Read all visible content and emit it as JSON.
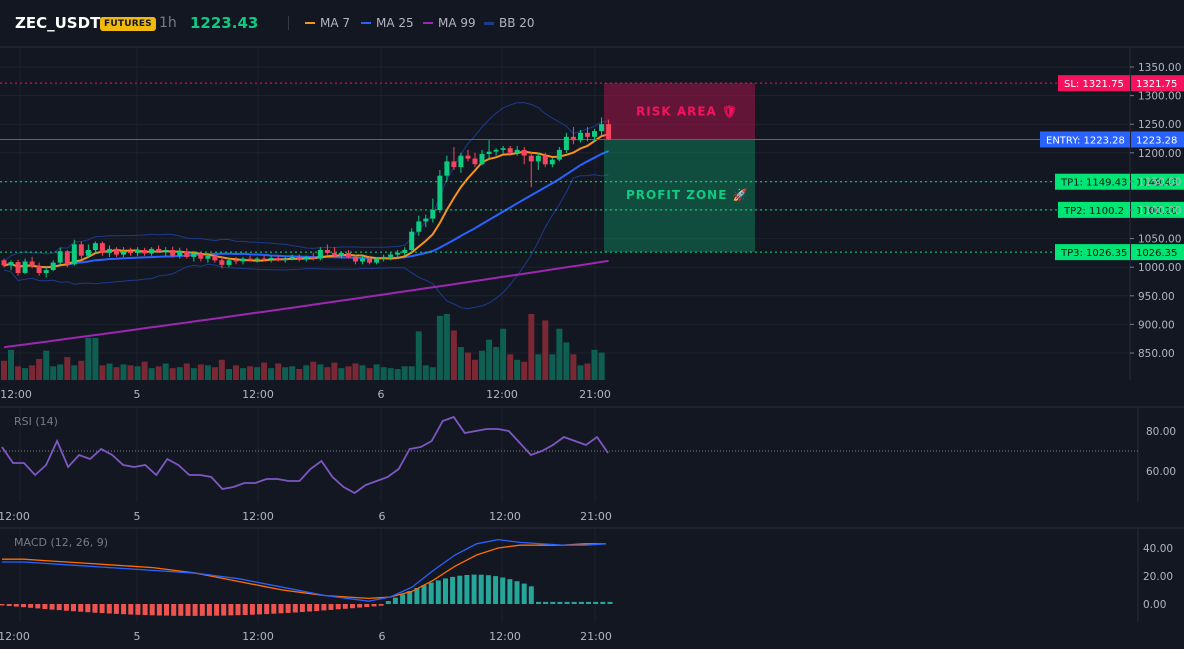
{
  "header": {
    "symbol": "ZEC_USDT",
    "badge": "FUTURES",
    "timeframe": "1h",
    "last_price": "1223.43",
    "indicators": [
      {
        "label": "MA 7",
        "color": "#f7931a"
      },
      {
        "label": "MA 25",
        "color": "#2962ff"
      },
      {
        "label": "MA 99",
        "color": "#9c27b0"
      },
      {
        "label": "BB 20",
        "color": "#1e3a8a"
      }
    ]
  },
  "price_axis": {
    "ticks": [
      "1350.00",
      "1300.00",
      "1250.00",
      "1200.00",
      "1150.00",
      "1100.00",
      "1050.00",
      "1000.00",
      "950.00",
      "900.00",
      "850.00"
    ]
  },
  "time_axis": {
    "labels": [
      "12:00",
      "5",
      "12:00",
      "6",
      "12:00",
      "21:00"
    ]
  },
  "levels": {
    "sl": {
      "tag": "SL: 1321.75",
      "price": "1321.75",
      "value": 1321.75,
      "color": "#f6125d"
    },
    "entry": {
      "tag": "ENTRY: 1223.28",
      "price": "1223.28",
      "value": 1223.28,
      "color": "#2962ff"
    },
    "tp1": {
      "tag": "TP1: 1149.43",
      "price": "1149.43",
      "value": 1149.43,
      "color": "#00e676"
    },
    "tp2": {
      "tag": "TP2: 1100.2",
      "price": "1100.20",
      "value": 1100.2,
      "color": "#00e676"
    },
    "tp3": {
      "tag": "TP3: 1026.35",
      "price": "1026.35",
      "value": 1026.35,
      "color": "#00e676"
    }
  },
  "zones": {
    "risk_label": "RISK AREA 🛡",
    "profit_label": "PROFIT ZONE 🚀"
  },
  "rsi": {
    "title": "RSI (14)",
    "ticks": [
      "80.00",
      "60.00"
    ]
  },
  "macd": {
    "title": "MACD (12, 26, 9)",
    "ticks": [
      "40.00",
      "20.00",
      "0.00"
    ]
  },
  "colors": {
    "up": "#0ecb81",
    "down": "#f6465d",
    "rsi_line": "#7e57c2",
    "macd_line": "#2962ff",
    "signal_line": "#ff6d00"
  },
  "chart_data": {
    "type": "candlestick",
    "interval": "1h",
    "ylim": [
      830,
      1365
    ],
    "candles": [
      {
        "o": 1012,
        "h": 1015,
        "l": 1000,
        "c": 1003
      },
      {
        "o": 1003,
        "h": 1012,
        "l": 995,
        "c": 1009
      },
      {
        "o": 1009,
        "h": 1013,
        "l": 985,
        "c": 990
      },
      {
        "o": 990,
        "h": 1015,
        "l": 988,
        "c": 1010
      },
      {
        "o": 1010,
        "h": 1018,
        "l": 998,
        "c": 1002
      },
      {
        "o": 1002,
        "h": 1008,
        "l": 985,
        "c": 990
      },
      {
        "o": 990,
        "h": 1000,
        "l": 982,
        "c": 995
      },
      {
        "o": 995,
        "h": 1012,
        "l": 993,
        "c": 1008
      },
      {
        "o": 1008,
        "h": 1034,
        "l": 1005,
        "c": 1028
      },
      {
        "o": 1028,
        "h": 1030,
        "l": 1000,
        "c": 1005
      },
      {
        "o": 1005,
        "h": 1048,
        "l": 1003,
        "c": 1040
      },
      {
        "o": 1040,
        "h": 1045,
        "l": 1015,
        "c": 1020
      },
      {
        "o": 1020,
        "h": 1040,
        "l": 1018,
        "c": 1030
      },
      {
        "o": 1030,
        "h": 1045,
        "l": 1025,
        "c": 1042
      },
      {
        "o": 1042,
        "h": 1045,
        "l": 1020,
        "c": 1025
      },
      {
        "o": 1025,
        "h": 1038,
        "l": 1018,
        "c": 1032
      },
      {
        "o": 1032,
        "h": 1035,
        "l": 1018,
        "c": 1022
      },
      {
        "o": 1022,
        "h": 1035,
        "l": 1018,
        "c": 1028
      },
      {
        "o": 1028,
        "h": 1034,
        "l": 1020,
        "c": 1025
      },
      {
        "o": 1025,
        "h": 1035,
        "l": 1020,
        "c": 1030
      },
      {
        "o": 1030,
        "h": 1034,
        "l": 1020,
        "c": 1024
      },
      {
        "o": 1024,
        "h": 1035,
        "l": 1020,
        "c": 1032
      },
      {
        "o": 1032,
        "h": 1038,
        "l": 1025,
        "c": 1028
      },
      {
        "o": 1028,
        "h": 1035,
        "l": 1020,
        "c": 1030
      },
      {
        "o": 1030,
        "h": 1036,
        "l": 1018,
        "c": 1020
      },
      {
        "o": 1020,
        "h": 1034,
        "l": 1015,
        "c": 1028
      },
      {
        "o": 1028,
        "h": 1033,
        "l": 1015,
        "c": 1018
      },
      {
        "o": 1018,
        "h": 1028,
        "l": 1010,
        "c": 1024
      },
      {
        "o": 1024,
        "h": 1026,
        "l": 1010,
        "c": 1015
      },
      {
        "o": 1015,
        "h": 1025,
        "l": 1008,
        "c": 1020
      },
      {
        "o": 1020,
        "h": 1022,
        "l": 1008,
        "c": 1012
      },
      {
        "o": 1012,
        "h": 1018,
        "l": 998,
        "c": 1004
      },
      {
        "o": 1004,
        "h": 1015,
        "l": 1000,
        "c": 1012
      },
      {
        "o": 1012,
        "h": 1018,
        "l": 1005,
        "c": 1010
      },
      {
        "o": 1010,
        "h": 1018,
        "l": 1005,
        "c": 1015
      },
      {
        "o": 1015,
        "h": 1020,
        "l": 1010,
        "c": 1012
      },
      {
        "o": 1012,
        "h": 1018,
        "l": 1008,
        "c": 1015
      },
      {
        "o": 1015,
        "h": 1020,
        "l": 1010,
        "c": 1014
      },
      {
        "o": 1014,
        "h": 1020,
        "l": 1008,
        "c": 1016
      },
      {
        "o": 1016,
        "h": 1020,
        "l": 1010,
        "c": 1012
      },
      {
        "o": 1012,
        "h": 1018,
        "l": 1008,
        "c": 1015
      },
      {
        "o": 1015,
        "h": 1022,
        "l": 1012,
        "c": 1018
      },
      {
        "o": 1018,
        "h": 1022,
        "l": 1010,
        "c": 1014
      },
      {
        "o": 1014,
        "h": 1020,
        "l": 1010,
        "c": 1018
      },
      {
        "o": 1018,
        "h": 1025,
        "l": 1012,
        "c": 1015
      },
      {
        "o": 1015,
        "h": 1035,
        "l": 1012,
        "c": 1030
      },
      {
        "o": 1030,
        "h": 1040,
        "l": 1022,
        "c": 1025
      },
      {
        "o": 1025,
        "h": 1035,
        "l": 1018,
        "c": 1020
      },
      {
        "o": 1020,
        "h": 1028,
        "l": 1015,
        "c": 1025
      },
      {
        "o": 1025,
        "h": 1030,
        "l": 1015,
        "c": 1018
      },
      {
        "o": 1018,
        "h": 1022,
        "l": 1005,
        "c": 1010
      },
      {
        "o": 1010,
        "h": 1020,
        "l": 1005,
        "c": 1015
      },
      {
        "o": 1015,
        "h": 1020,
        "l": 1005,
        "c": 1008
      },
      {
        "o": 1008,
        "h": 1018,
        "l": 1005,
        "c": 1015
      },
      {
        "o": 1015,
        "h": 1022,
        "l": 1010,
        "c": 1018
      },
      {
        "o": 1018,
        "h": 1025,
        "l": 1012,
        "c": 1022
      },
      {
        "o": 1022,
        "h": 1030,
        "l": 1015,
        "c": 1025
      },
      {
        "o": 1025,
        "h": 1035,
        "l": 1020,
        "c": 1030
      },
      {
        "o": 1030,
        "h": 1068,
        "l": 1025,
        "c": 1062
      },
      {
        "o": 1062,
        "h": 1090,
        "l": 1055,
        "c": 1080
      },
      {
        "o": 1080,
        "h": 1092,
        "l": 1070,
        "c": 1085
      },
      {
        "o": 1085,
        "h": 1120,
        "l": 1078,
        "c": 1100
      },
      {
        "o": 1100,
        "h": 1170,
        "l": 1095,
        "c": 1160
      },
      {
        "o": 1160,
        "h": 1195,
        "l": 1150,
        "c": 1185
      },
      {
        "o": 1185,
        "h": 1210,
        "l": 1170,
        "c": 1175
      },
      {
        "o": 1175,
        "h": 1200,
        "l": 1165,
        "c": 1195
      },
      {
        "o": 1195,
        "h": 1205,
        "l": 1185,
        "c": 1190
      },
      {
        "o": 1190,
        "h": 1200,
        "l": 1175,
        "c": 1180
      },
      {
        "o": 1180,
        "h": 1205,
        "l": 1178,
        "c": 1198
      },
      {
        "o": 1198,
        "h": 1222,
        "l": 1190,
        "c": 1202
      },
      {
        "o": 1202,
        "h": 1208,
        "l": 1195,
        "c": 1205
      },
      {
        "o": 1205,
        "h": 1212,
        "l": 1198,
        "c": 1208
      },
      {
        "o": 1208,
        "h": 1212,
        "l": 1195,
        "c": 1200
      },
      {
        "o": 1200,
        "h": 1212,
        "l": 1195,
        "c": 1205
      },
      {
        "o": 1205,
        "h": 1210,
        "l": 1180,
        "c": 1195
      },
      {
        "o": 1195,
        "h": 1202,
        "l": 1140,
        "c": 1185
      },
      {
        "o": 1185,
        "h": 1200,
        "l": 1170,
        "c": 1195
      },
      {
        "o": 1195,
        "h": 1200,
        "l": 1175,
        "c": 1180
      },
      {
        "o": 1180,
        "h": 1192,
        "l": 1175,
        "c": 1188
      },
      {
        "o": 1188,
        "h": 1210,
        "l": 1185,
        "c": 1205
      },
      {
        "o": 1205,
        "h": 1235,
        "l": 1200,
        "c": 1228
      },
      {
        "o": 1228,
        "h": 1245,
        "l": 1215,
        "c": 1222
      },
      {
        "o": 1222,
        "h": 1240,
        "l": 1218,
        "c": 1235
      },
      {
        "o": 1235,
        "h": 1245,
        "l": 1220,
        "c": 1228
      },
      {
        "o": 1228,
        "h": 1242,
        "l": 1220,
        "c": 1238
      },
      {
        "o": 1238,
        "h": 1262,
        "l": 1230,
        "c": 1250
      },
      {
        "o": 1250,
        "h": 1258,
        "l": 1222,
        "c": 1223.43
      }
    ],
    "volume": [
      210,
      330,
      150,
      130,
      160,
      230,
      320,
      150,
      170,
      250,
      160,
      210,
      460,
      460,
      160,
      180,
      140,
      170,
      160,
      150,
      200,
      130,
      150,
      180,
      130,
      140,
      180,
      130,
      170,
      160,
      140,
      220,
      120,
      160,
      130,
      150,
      140,
      190,
      130,
      180,
      140,
      150,
      120,
      160,
      200,
      170,
      140,
      190,
      130,
      150,
      180,
      160,
      130,
      170,
      140,
      130,
      120,
      150,
      150,
      530,
      160,
      140,
      700,
      720,
      540,
      360,
      300,
      220,
      320,
      440,
      360,
      560,
      280,
      220,
      200,
      720,
      280,
      650,
      280,
      560,
      410,
      280,
      160,
      180,
      330,
      300
    ],
    "rsi": [
      72,
      64,
      64,
      58,
      63,
      75,
      62,
      68,
      66,
      71,
      68,
      63,
      62,
      63,
      58,
      66,
      63,
      58,
      58,
      57,
      51,
      52,
      54,
      54,
      56,
      56,
      55,
      55,
      61,
      65,
      57,
      52,
      49,
      53,
      55,
      57,
      61,
      71,
      72,
      75,
      85,
      87,
      79,
      80,
      81,
      81,
      80,
      74,
      68,
      70,
      73,
      77,
      75,
      73,
      77,
      69
    ],
    "rsi_ticks": [
      80,
      60
    ],
    "macd": [
      30,
      30,
      29,
      28,
      27,
      26,
      25,
      24,
      23,
      22,
      20,
      18,
      15,
      12,
      9,
      6,
      4,
      2,
      5,
      12,
      24,
      35,
      43,
      46,
      44,
      43,
      42,
      42,
      43
    ],
    "signal": [
      32,
      32,
      31,
      30,
      29,
      28,
      27,
      26,
      24,
      22,
      19,
      16,
      13,
      10,
      8,
      6,
      5,
      4,
      5,
      9,
      17,
      27,
      35,
      40,
      42,
      42,
      42,
      43,
      43
    ],
    "macd_ticks": [
      40,
      20,
      0
    ]
  }
}
